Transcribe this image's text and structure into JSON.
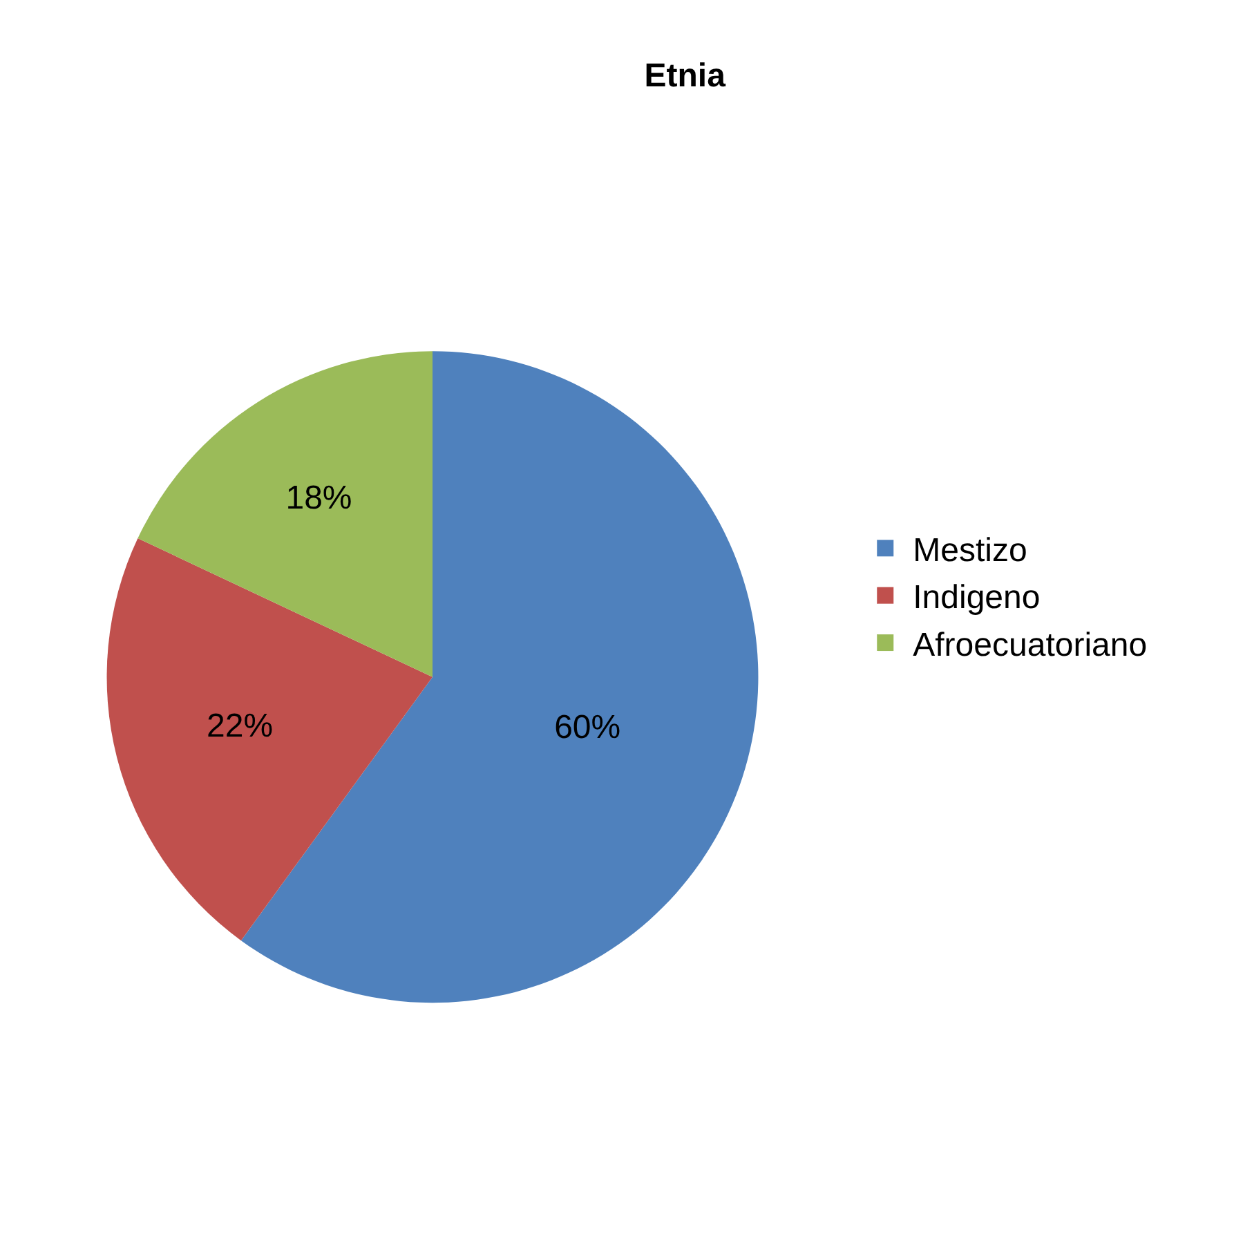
{
  "chart_data": {
    "type": "pie",
    "title": "Etnia",
    "categories": [
      "Mestizo",
      "Indigeno",
      "Afroecuatoriano"
    ],
    "values": [
      60,
      22,
      18
    ],
    "colors": [
      "#4f81bd",
      "#c0504d",
      "#9bbb59"
    ],
    "value_labels": [
      "60%",
      "22%",
      "18%"
    ],
    "legend": "right"
  }
}
